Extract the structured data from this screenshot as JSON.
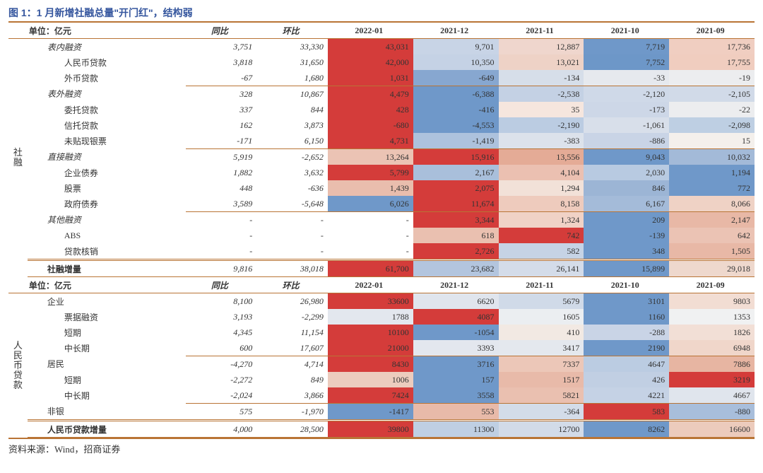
{
  "title": "图 1：1 月新增社融总量\"开门红\"，结构弱",
  "source": "资料来源：Wind，招商证券",
  "headers1": {
    "unit": "单位：亿元",
    "yoy": "同比",
    "mom": "环比",
    "months": [
      "2022-01",
      "2021-12",
      "2021-11",
      "2021-10",
      "2021-09"
    ]
  },
  "side_labels": {
    "top": "社融",
    "bottom": "人民币贷款"
  },
  "section1_rows": [
    {
      "k": "biaonei",
      "label": "表内融资",
      "indent": 1,
      "italic": true,
      "yoy": "3,751",
      "mom": "33,330",
      "vals": [
        "43,031",
        "9,701",
        "12,887",
        "7,719",
        "17,736"
      ],
      "border_bottom": false
    },
    {
      "k": "rmb_loan",
      "label": "人民币贷款",
      "indent": 2,
      "yoy": "3,818",
      "mom": "31,650",
      "vals": [
        "42,000",
        "10,350",
        "13,021",
        "7,752",
        "17,755"
      ]
    },
    {
      "k": "fx_loan",
      "label": "外币贷款",
      "indent": 2,
      "yoy": "-67",
      "mom": "1,680",
      "vals": [
        "1,031",
        "-649",
        "-134",
        "-33",
        "-19"
      ],
      "border_bottom": true
    },
    {
      "k": "biaowai",
      "label": "表外融资",
      "indent": 1,
      "italic": true,
      "yoy": "328",
      "mom": "10,867",
      "vals": [
        "4,479",
        "-6,388",
        "-2,538",
        "-2,120",
        "-2,105"
      ]
    },
    {
      "k": "weituo",
      "label": "委托贷款",
      "indent": 2,
      "yoy": "337",
      "mom": "844",
      "vals": [
        "428",
        "-416",
        "35",
        "-173",
        "-22"
      ]
    },
    {
      "k": "xintuo",
      "label": "信托贷款",
      "indent": 2,
      "yoy": "162",
      "mom": "3,873",
      "vals": [
        "-680",
        "-4,553",
        "-2,190",
        "-1,061",
        "-2,098"
      ]
    },
    {
      "k": "weitiex",
      "label": "未贴现银票",
      "indent": 2,
      "yoy": "-171",
      "mom": "6,150",
      "vals": [
        "4,731",
        "-1,419",
        "-383",
        "-886",
        "15"
      ],
      "border_bottom": true
    },
    {
      "k": "zhijie",
      "label": "直接融资",
      "indent": 1,
      "italic": true,
      "yoy": "5,919",
      "mom": "-2,652",
      "vals": [
        "13,264",
        "15,916",
        "13,556",
        "9,043",
        "10,032"
      ]
    },
    {
      "k": "corp_bond",
      "label": "企业债券",
      "indent": 2,
      "yoy": "1,882",
      "mom": "3,632",
      "vals": [
        "5,799",
        "2,167",
        "4,104",
        "2,030",
        "1,194"
      ]
    },
    {
      "k": "stock",
      "label": "股票",
      "indent": 2,
      "yoy": "448",
      "mom": "-636",
      "vals": [
        "1,439",
        "2,075",
        "1,294",
        "846",
        "772"
      ]
    },
    {
      "k": "gov_bond",
      "label": "政府债券",
      "indent": 2,
      "yoy": "3,589",
      "mom": "-5,648",
      "vals": [
        "6,026",
        "11,674",
        "8,158",
        "6,167",
        "8,066"
      ],
      "border_bottom": true
    },
    {
      "k": "qita",
      "label": "其他融资",
      "indent": 1,
      "italic": true,
      "yoy": "-",
      "mom": "-",
      "vals": [
        "-",
        "3,344",
        "1,324",
        "209",
        "2,147"
      ]
    },
    {
      "k": "abs",
      "label": "ABS",
      "indent": 2,
      "yoy": "-",
      "mom": "-",
      "vals": [
        "-",
        "618",
        "742",
        "-139",
        "642"
      ]
    },
    {
      "k": "hexiao",
      "label": "贷款核销",
      "indent": 2,
      "yoy": "-",
      "mom": "-",
      "vals": [
        "-",
        "2,726",
        "582",
        "348",
        "1,505"
      ]
    }
  ],
  "section1_total": {
    "label": "社融增量",
    "yoy": "9,816",
    "mom": "38,018",
    "vals": [
      "61,700",
      "23,682",
      "26,141",
      "15,899",
      "29,018"
    ]
  },
  "section2_rows": [
    {
      "k": "corp",
      "label": "企业",
      "indent": 1,
      "yoy": "8,100",
      "mom": "26,980",
      "vals": [
        "33600",
        "6620",
        "5679",
        "3101",
        "9803"
      ]
    },
    {
      "k": "bill",
      "label": "票据融资",
      "indent": 2,
      "yoy": "3,193",
      "mom": "-2,299",
      "vals": [
        "1788",
        "4087",
        "1605",
        "1160",
        "1353"
      ]
    },
    {
      "k": "short_c",
      "label": "短期",
      "indent": 2,
      "yoy": "4,345",
      "mom": "11,154",
      "vals": [
        "10100",
        "-1054",
        "410",
        "-288",
        "1826"
      ]
    },
    {
      "k": "mlong_c",
      "label": "中长期",
      "indent": 2,
      "yoy": "600",
      "mom": "17,607",
      "vals": [
        "21000",
        "3393",
        "3417",
        "2190",
        "6948"
      ],
      "border_bottom": true
    },
    {
      "k": "hh",
      "label": "居民",
      "indent": 1,
      "yoy": "-4,270",
      "mom": "4,714",
      "vals": [
        "8430",
        "3716",
        "7337",
        "4647",
        "7886"
      ]
    },
    {
      "k": "short_h",
      "label": "短期",
      "indent": 2,
      "yoy": "-2,272",
      "mom": "849",
      "vals": [
        "1006",
        "157",
        "1517",
        "426",
        "3219"
      ]
    },
    {
      "k": "mlong_h",
      "label": "中长期",
      "indent": 2,
      "yoy": "-2,024",
      "mom": "3,866",
      "vals": [
        "7424",
        "3558",
        "5821",
        "4221",
        "4667"
      ],
      "border_bottom": true
    },
    {
      "k": "nonbank",
      "label": "非银",
      "indent": 1,
      "yoy": "575",
      "mom": "-1,970",
      "vals": [
        "-1417",
        "553",
        "-364",
        "583",
        "-880"
      ]
    }
  ],
  "section2_total": {
    "label": "人民币贷款增量",
    "yoy": "4,000",
    "mom": "28,500",
    "vals": [
      "39800",
      "11300",
      "12700",
      "8262",
      "16600"
    ]
  },
  "heat_colors": {
    "section1": {
      "biaonei": [
        "#d43c3a",
        "#c8d4e6",
        "#efd6cd",
        "#6f98c9",
        "#f0cec1"
      ],
      "rmb_loan": [
        "#d43c3a",
        "#c5d2e5",
        "#eed2c6",
        "#6d97c8",
        "#f0cdbf"
      ],
      "fx_loan": [
        "#d43c3a",
        "#87a7d0",
        "#d6dee9",
        "#e6e9ee",
        "#ecedef"
      ],
      "biaowai": [
        "#d43c3a",
        "#6f98c9",
        "#c4d1e4",
        "#cfd9e8",
        "#d1dae8"
      ],
      "weituo": [
        "#d43c3a",
        "#6f98c9",
        "#f6e6de",
        "#cdd7e7",
        "#ecedef"
      ],
      "xintuo": [
        "#d43c3a",
        "#6f98c9",
        "#bbcce2",
        "#d8dfea",
        "#becfe3"
      ],
      "weitiex": [
        "#d43c3a",
        "#adc2dd",
        "#dce2eb",
        "#c9d4e6",
        "#f4f0ec"
      ],
      "zhijie": [
        "#ebc3b4",
        "#d43c3a",
        "#e4ab96",
        "#6f98c9",
        "#a3bad8"
      ],
      "corp_bond": [
        "#d43c3a",
        "#a9bfdb",
        "#ebc0b1",
        "#b8cae1",
        "#6f98c9"
      ],
      "stock": [
        "#e9bdad",
        "#d43c3a",
        "#f2e1d8",
        "#9cb5d5",
        "#6f98c9"
      ],
      "gov_bond": [
        "#6f98c9",
        "#d43c3a",
        "#eecbbd",
        "#a4bbd9",
        "#efd2c5"
      ],
      "qita": [
        "#ffffff",
        "#d43c3a",
        "#f0d2c6",
        "#6f98c9",
        "#e8b8a6"
      ],
      "abs": [
        "#ffffff",
        "#eac0b0",
        "#d43c3a",
        "#6f98c9",
        "#ebc3b4"
      ],
      "hexiao": [
        "#ffffff",
        "#d43c3a",
        "#c6d3e5",
        "#6f98c9",
        "#e8b8a6"
      ]
    },
    "section1_total": [
      "#d43c3a",
      "#b3c5de",
      "#d4dce9",
      "#6f98c9",
      "#eed8cd"
    ],
    "section2": {
      "corp": [
        "#d43c3a",
        "#e0e5ed",
        "#d0dae8",
        "#6f98c9",
        "#f2ddd3"
      ],
      "bill": [
        "#e3e7ee",
        "#d43c3a",
        "#ebeef1",
        "#6f98c9",
        "#f0f1f2"
      ],
      "short_c": [
        "#d43c3a",
        "#6f98c9",
        "#f2e9e3",
        "#c9d4e6",
        "#f2dfd6"
      ],
      "mlong_c": [
        "#d43c3a",
        "#e3e7ee",
        "#e4e8ee",
        "#6f98c9",
        "#f0d6ca"
      ],
      "hh": [
        "#d43c3a",
        "#6f98c9",
        "#ecc7b8",
        "#bbcce2",
        "#e7b5a2"
      ],
      "short_h": [
        "#ecccbe",
        "#6f98c9",
        "#e8baa9",
        "#c1cfe3",
        "#d43c3a"
      ],
      "mlong_h": [
        "#d43c3a",
        "#6f98c9",
        "#eac0b0",
        "#c5d2e5",
        "#e0e5ed"
      ],
      "nonbank": [
        "#6f98c9",
        "#e8baa9",
        "#d3dce9",
        "#d43c3a",
        "#a8bedb"
      ]
    },
    "section2_total": [
      "#d43c3a",
      "#bfcfe3",
      "#d2dbe8",
      "#6f98c9",
      "#eccbbc"
    ]
  }
}
